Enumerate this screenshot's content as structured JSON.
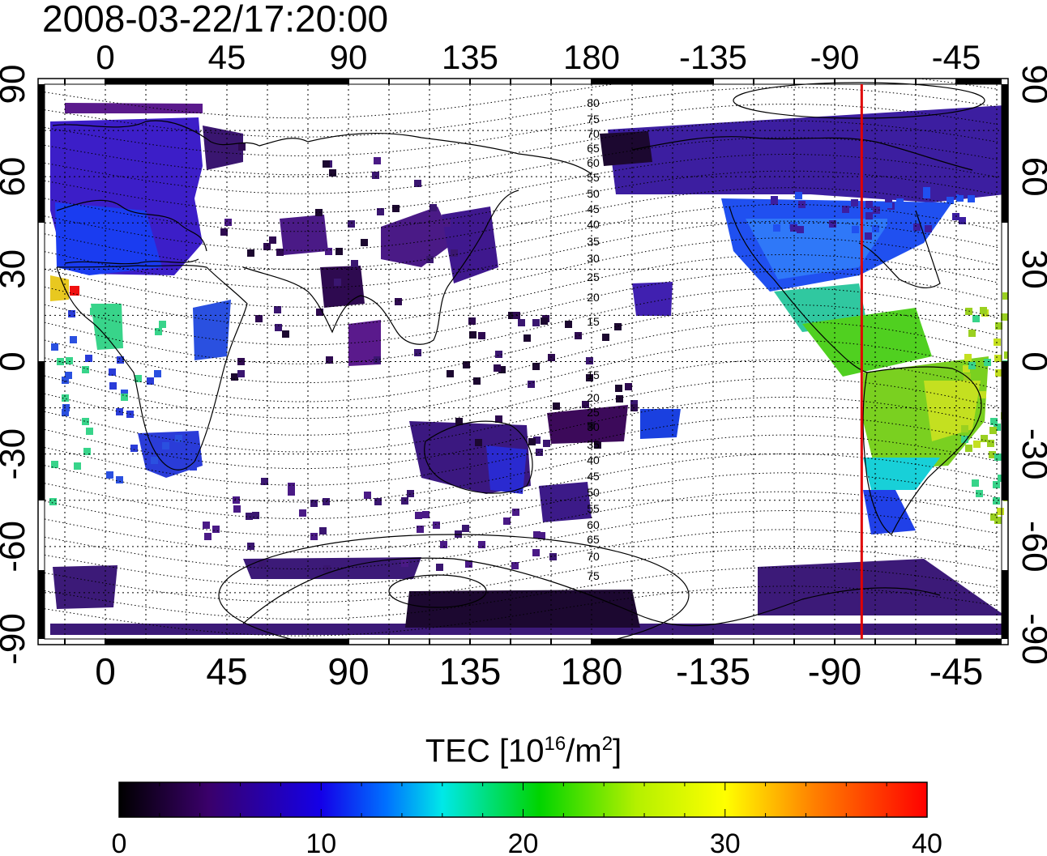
{
  "title": {
    "timestamp": "2008-03-22/17:20:00"
  },
  "map": {
    "lon_ticks": [
      "0",
      "45",
      "90",
      "135",
      "180",
      "-135",
      "-90",
      "-45"
    ],
    "lat_ticks": [
      "90",
      "60",
      "30",
      "0",
      "-30",
      "-60",
      "-90"
    ],
    "magnetic_latitude_labels": [
      "80",
      "75",
      "70",
      "65",
      "60",
      "55",
      "50",
      "45",
      "40",
      "35",
      "30",
      "25",
      "20",
      "15",
      "15",
      "20",
      "25",
      "30",
      "35",
      "40",
      "45",
      "50",
      "55",
      "60",
      "65",
      "70",
      "75"
    ],
    "terminator_longitude": -80,
    "colors": {
      "terminator": "#e00000",
      "coastline": "#000000",
      "background": "#ffffff"
    }
  },
  "colorbar": {
    "label_main": "TEC  [10",
    "label_exp1": "16",
    "label_mid": "/m",
    "label_exp2": "2",
    "label_end": "]",
    "ticks": [
      "0",
      "10",
      "20",
      "30",
      "40"
    ],
    "range": [
      0,
      40
    ],
    "colormap": [
      "#000000",
      "#3a006a",
      "#1400e8",
      "#00a0ff",
      "#00e8e0",
      "#00d400",
      "#c8f000",
      "#ffff00",
      "#ff8000",
      "#ff0000"
    ]
  }
}
